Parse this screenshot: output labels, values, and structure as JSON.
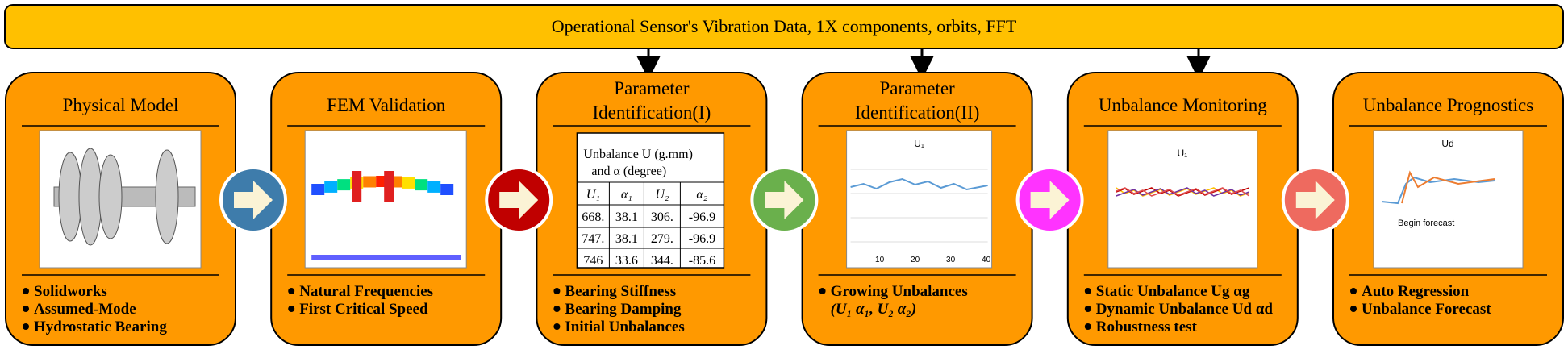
{
  "banner": "Operational Sensor's Vibration Data, 1X components, orbits, FFT",
  "stages": [
    {
      "title": [
        "Physical Model"
      ],
      "bullets": [
        "Solidworks",
        "Assumed-Mode",
        "Hydrostatic Bearing"
      ]
    },
    {
      "title": [
        "FEM Validation"
      ],
      "bullets": [
        "Natural Frequencies",
        "First Critical Speed"
      ]
    },
    {
      "title": [
        "Parameter",
        "Identification(I)"
      ],
      "bullets": [
        "Bearing Stiffness",
        "Bearing Damping",
        "Initial Unbalances"
      ]
    },
    {
      "title": [
        "Parameter",
        "Identification(II)"
      ],
      "bullets": [
        "Growing Unbalances"
      ],
      "note": "(U₁ α₁, U₂ α₂)"
    },
    {
      "title": [
        "Unbalance Monitoring"
      ],
      "bullets": [
        "Static Unbalance Ug αg",
        "Dynamic Unbalance Ud αd",
        "Robustness test"
      ]
    },
    {
      "title": [
        "Unbalance Prognostics"
      ],
      "bullets": [
        "Auto Regression",
        "Unbalance Forecast"
      ]
    }
  ],
  "table": {
    "caption": [
      "Unbalance U (g.mm)",
      "and α (degree)"
    ],
    "header": [
      "U₁",
      "α₁",
      "U₂",
      "α₂"
    ],
    "rows": [
      [
        "668.",
        "38.1",
        "306.",
        "-96.9"
      ],
      [
        "747.",
        "38.1",
        "279.",
        "-96.9"
      ],
      [
        "746",
        "33.6",
        "344.",
        "-85.6"
      ]
    ]
  },
  "plot_ii": {
    "title": "U₁",
    "xlabels": [
      "10",
      "20",
      "30",
      "40"
    ]
  },
  "plot_monitor": {
    "title": "U₁"
  },
  "plot_prognostics": {
    "title": "Ud",
    "annotation": "Begin forecast"
  }
}
